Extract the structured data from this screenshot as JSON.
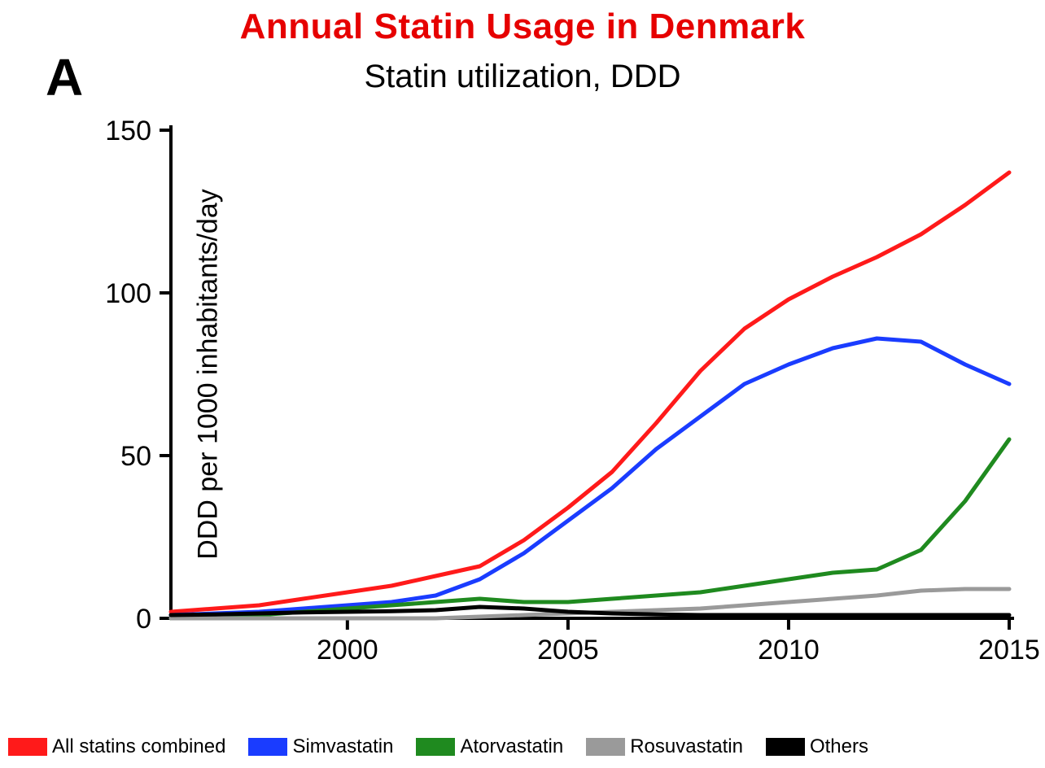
{
  "main_title": "Annual Statin Usage in Denmark",
  "main_title_color": "#e60000",
  "main_title_fontsize": 44,
  "panel_letter": "A",
  "chart": {
    "type": "line",
    "title": "Statin utilization, DDD",
    "title_fontsize": 40,
    "ylabel": "DDD per 1000 inhabitants/day",
    "ylabel_fontsize": 34,
    "background_color": "#ffffff",
    "axis_color": "#000000",
    "axis_line_width": 4,
    "tick_length": 14,
    "tick_fontsize": 34,
    "line_width": 5,
    "xlim": [
      1996,
      2015
    ],
    "ylim": [
      0,
      150
    ],
    "xticks": [
      2000,
      2005,
      2010,
      2015
    ],
    "yticks": [
      0,
      50,
      100,
      150
    ],
    "x": [
      1996,
      1997,
      1998,
      1999,
      2000,
      2001,
      2002,
      2003,
      2004,
      2005,
      2006,
      2007,
      2008,
      2009,
      2010,
      2011,
      2012,
      2013,
      2014,
      2015
    ],
    "series": [
      {
        "name": "All statins combined",
        "color": "#ff1a1a",
        "y": [
          2,
          3,
          4,
          6,
          8,
          10,
          13,
          16,
          24,
          34,
          45,
          60,
          76,
          89,
          98,
          105,
          111,
          118,
          127,
          137
        ]
      },
      {
        "name": "Simvastatin",
        "color": "#1a3cff",
        "y": [
          1,
          1.5,
          2,
          3,
          4,
          5,
          7,
          12,
          20,
          30,
          40,
          52,
          62,
          72,
          78,
          83,
          86,
          85,
          78,
          72
        ]
      },
      {
        "name": "Atorvastatin",
        "color": "#1f8a1f",
        "y": [
          0,
          0.5,
          1,
          2,
          3,
          4,
          5,
          6,
          5,
          5,
          6,
          7,
          8,
          10,
          12,
          14,
          15,
          21,
          36,
          55
        ]
      },
      {
        "name": "Rosuvastatin",
        "color": "#9a9a9a",
        "y": [
          0,
          0,
          0,
          0,
          0,
          0,
          0,
          0.5,
          1,
          1.5,
          2,
          2.5,
          3,
          4,
          5,
          6,
          7,
          8.5,
          9,
          9
        ]
      },
      {
        "name": "Others",
        "color": "#000000",
        "y": [
          1,
          1.2,
          1.5,
          1.8,
          2,
          2.2,
          2.5,
          3.5,
          3,
          2,
          1.5,
          1.2,
          1,
          1,
          1,
          1,
          1,
          1,
          1,
          1
        ]
      }
    ],
    "legend": [
      {
        "label": "All statins combined",
        "color": "#ff1a1a"
      },
      {
        "label": "Simvastatin",
        "color": "#1a3cff"
      },
      {
        "label": "Atorvastatin",
        "color": "#1f8a1f"
      },
      {
        "label": "Rosuvastatin",
        "color": "#9a9a9a"
      },
      {
        "label": "Others",
        "color": "#000000"
      }
    ]
  }
}
